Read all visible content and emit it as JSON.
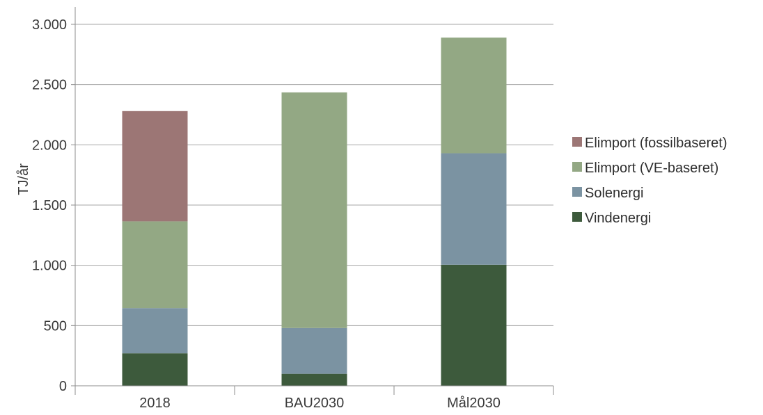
{
  "chart_data": {
    "type": "bar",
    "stacked": true,
    "title": "",
    "xlabel": "",
    "ylabel": "TJ/år",
    "categories": [
      "2018",
      "BAU2030",
      "Mål2030"
    ],
    "ylim": [
      0,
      3000
    ],
    "yticks": [
      0,
      500,
      1000,
      1500,
      2000,
      2500,
      3000
    ],
    "ytick_labels": [
      "0",
      "500",
      "1.000",
      "1.500",
      "2.000",
      "2.500",
      "3.000"
    ],
    "grid": true,
    "legend_position": "right",
    "series": [
      {
        "name": "Vindenergi",
        "color": "#3d5a3c",
        "values": [
          270,
          100,
          1005
        ]
      },
      {
        "name": "Solenergi",
        "color": "#7b93a2",
        "values": [
          375,
          380,
          925
        ]
      },
      {
        "name": "Elimport (VE-baseret)",
        "color": "#93a884",
        "values": [
          720,
          1955,
          960
        ]
      },
      {
        "name": "Elimport (fossilbaseret)",
        "color": "#9c7675",
        "values": [
          915,
          0,
          0
        ]
      }
    ],
    "legend_order": [
      "Elimport (fossilbaseret)",
      "Elimport (VE-baseret)",
      "Solenergi",
      "Vindenergi"
    ]
  }
}
